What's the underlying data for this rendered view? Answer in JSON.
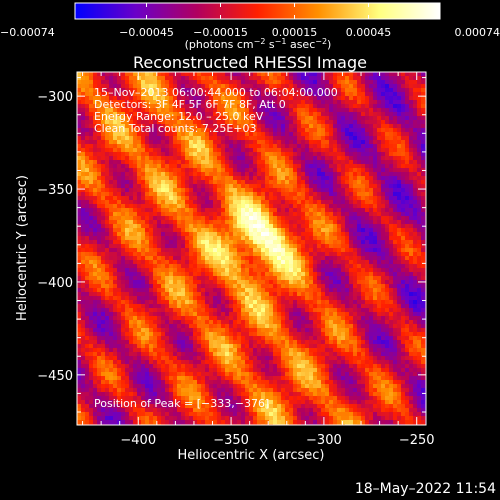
{
  "chart_data": {
    "type": "heatmap",
    "title": "Reconstructed RHESSI Image",
    "xlabel": "Heliocentric X (arcsec)",
    "ylabel": "Heliocentric Y (arcsec)",
    "xlim": [
      -433,
      -245
    ],
    "ylim": [
      -477,
      -287
    ],
    "x_ticks": [
      -400,
      -350,
      -300,
      -250
    ],
    "x_tick_labels": [
      "−400",
      "−350",
      "−300",
      "−250"
    ],
    "y_ticks": [
      -300,
      -350,
      -400,
      -450
    ],
    "y_tick_labels": [
      "−300",
      "−350",
      "−400",
      "−450"
    ],
    "colorbar": {
      "min": -0.00074,
      "max": 0.00074,
      "tick_values": [
        -0.00074,
        -0.00045,
        -0.00015,
        0.00015,
        0.00045,
        0.00074
      ],
      "tick_labels": [
        "−0.00074",
        "−0.00045",
        "−0.00015",
        "0.00015",
        "0.00045",
        "0.00074"
      ],
      "unit_label_parts": [
        "(photons cm",
        "−2",
        " s",
        "−1",
        " asec",
        "−2",
        ")"
      ],
      "colors": [
        "#0000ff",
        "#6a00c8",
        "#b00060",
        "#ff2000",
        "#ff9000",
        "#ffff80",
        "#ffffff"
      ]
    },
    "peak": {
      "x": -333,
      "y": -376
    },
    "annotations": [
      "15–Nov–2013 06:00:44.000 to 06:04:00.000",
      "Detectors: 3F 4F 5F 6F 7F 8F, Att 0",
      "Energy Range: 12.0 – 25.0 keV",
      "Clean     Total counts: 7.25E+03"
    ],
    "peak_label": "Position of Peak = [−333,−376]"
  },
  "footer": {
    "timestamp": "18–May–2022 11:54"
  }
}
